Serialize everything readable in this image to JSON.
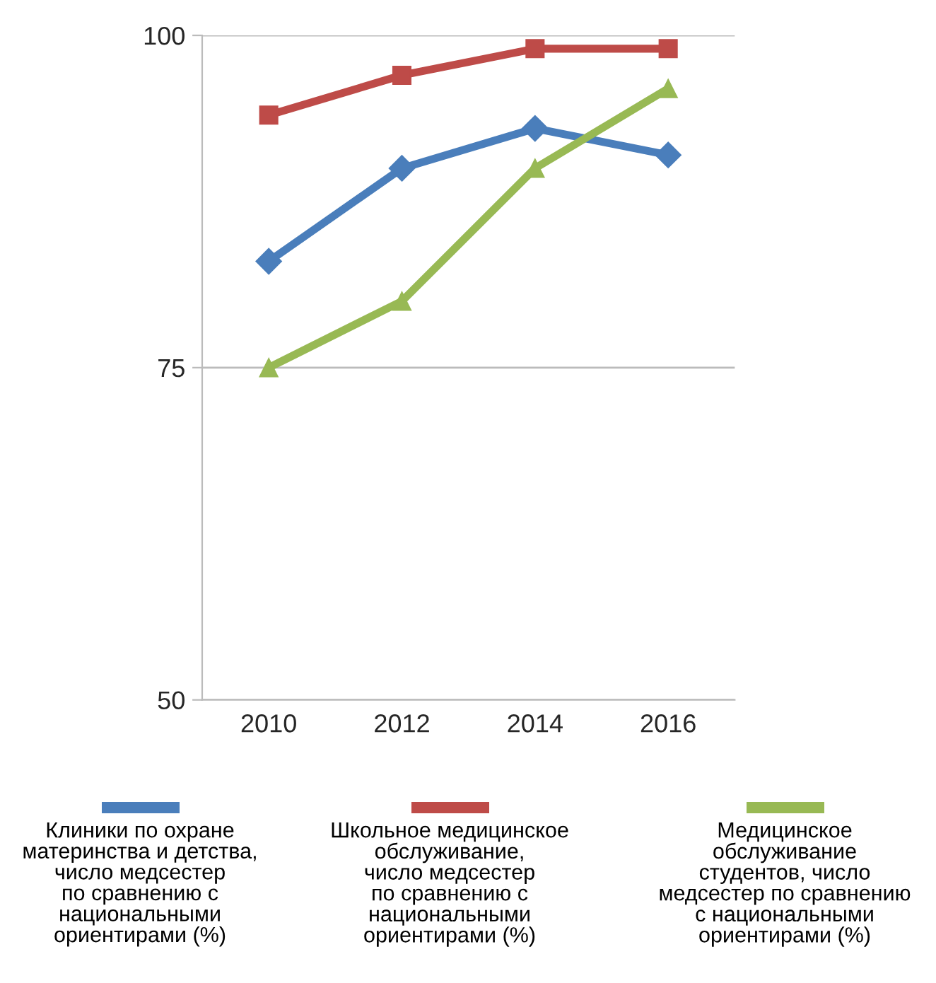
{
  "chart_data": {
    "type": "line",
    "categories": [
      "2010",
      "2012",
      "2014",
      "2016"
    ],
    "series": [
      {
        "name": "Клиники по охране\nматеринства и детства,\nчисло медсестер\nпо сравнению с\nнациональными\nориентирами (%)",
        "color": "#4a7ebb",
        "values": [
          83,
          90,
          93,
          91
        ],
        "marker": "diamond"
      },
      {
        "name": "Школьное медицинское\nобслуживание,\nчисло медсестер\nпо сравнению с\nнациональными\nориентирами (%)",
        "color": "#be4b48",
        "values": [
          94,
          97,
          99,
          99
        ],
        "marker": "square"
      },
      {
        "name": "Медицинское\nобслуживание\nстудентов, число\nмедсестер по сравнению\nс национальными\nориентирами (%)",
        "color": "#98b954",
        "values": [
          75,
          80,
          90,
          96
        ],
        "marker": "triangle"
      }
    ],
    "ylim": [
      50,
      100
    ],
    "yticks": [
      50,
      75,
      100
    ],
    "grid": "y",
    "legend": "bottom"
  }
}
